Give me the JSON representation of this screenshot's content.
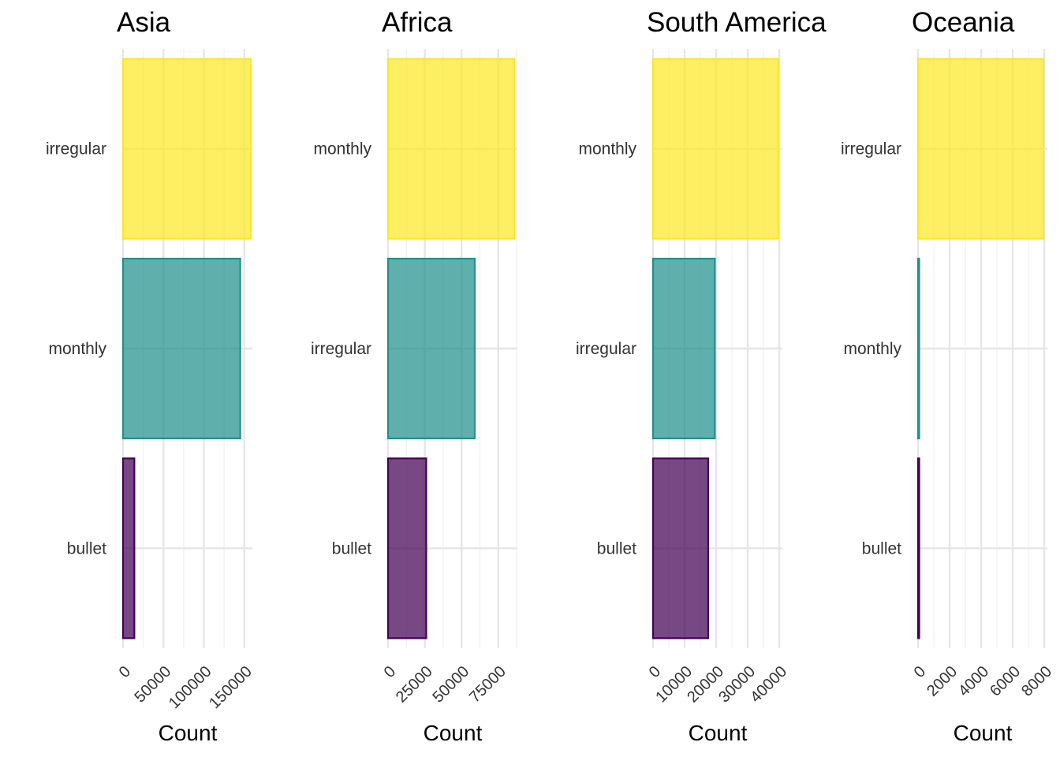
{
  "chart_data": [
    {
      "type": "bar",
      "orientation": "horizontal",
      "title": "Asia",
      "xlabel": "Count",
      "categories": [
        "irregular",
        "monthly",
        "bullet"
      ],
      "values": [
        158000,
        145000,
        14000
      ],
      "colors": [
        "#FDE725",
        "#21908C",
        "#440154"
      ],
      "xticks": [
        0,
        50000,
        100000,
        150000
      ],
      "xtick_labels": [
        "0",
        "50000",
        "100000",
        "150000"
      ],
      "xlim": [
        0,
        160000
      ],
      "grid": true
    },
    {
      "type": "bar",
      "orientation": "horizontal",
      "title": "Africa",
      "xlabel": "Count",
      "categories": [
        "monthly",
        "irregular",
        "bullet"
      ],
      "values": [
        86000,
        59000,
        26000
      ],
      "colors": [
        "#FDE725",
        "#21908C",
        "#440154"
      ],
      "xticks": [
        0,
        25000,
        50000,
        75000
      ],
      "xtick_labels": [
        "0",
        "25000",
        "50000",
        "75000"
      ],
      "xlim": [
        0,
        88000
      ],
      "grid": true
    },
    {
      "type": "bar",
      "orientation": "horizontal",
      "title": "South America",
      "xlabel": "Count",
      "categories": [
        "monthly",
        "irregular",
        "bullet"
      ],
      "values": [
        39700,
        19600,
        17500
      ],
      "colors": [
        "#FDE725",
        "#21908C",
        "#440154"
      ],
      "xticks": [
        0,
        10000,
        20000,
        30000,
        40000
      ],
      "xtick_labels": [
        "0",
        "10000",
        "20000",
        "30000",
        "40000"
      ],
      "xlim": [
        0,
        41000
      ],
      "grid": true
    },
    {
      "type": "bar",
      "orientation": "horizontal",
      "title": "Oceania",
      "xlabel": "Count",
      "categories": [
        "irregular",
        "monthly",
        "bullet"
      ],
      "values": [
        7950,
        30,
        20
      ],
      "colors": [
        "#FDE725",
        "#21908C",
        "#440154"
      ],
      "xticks": [
        0,
        2000,
        4000,
        6000,
        8000
      ],
      "xtick_labels": [
        "0",
        "2000",
        "4000",
        "6000",
        "8000"
      ],
      "xlim": [
        0,
        8200
      ],
      "grid": true
    }
  ]
}
